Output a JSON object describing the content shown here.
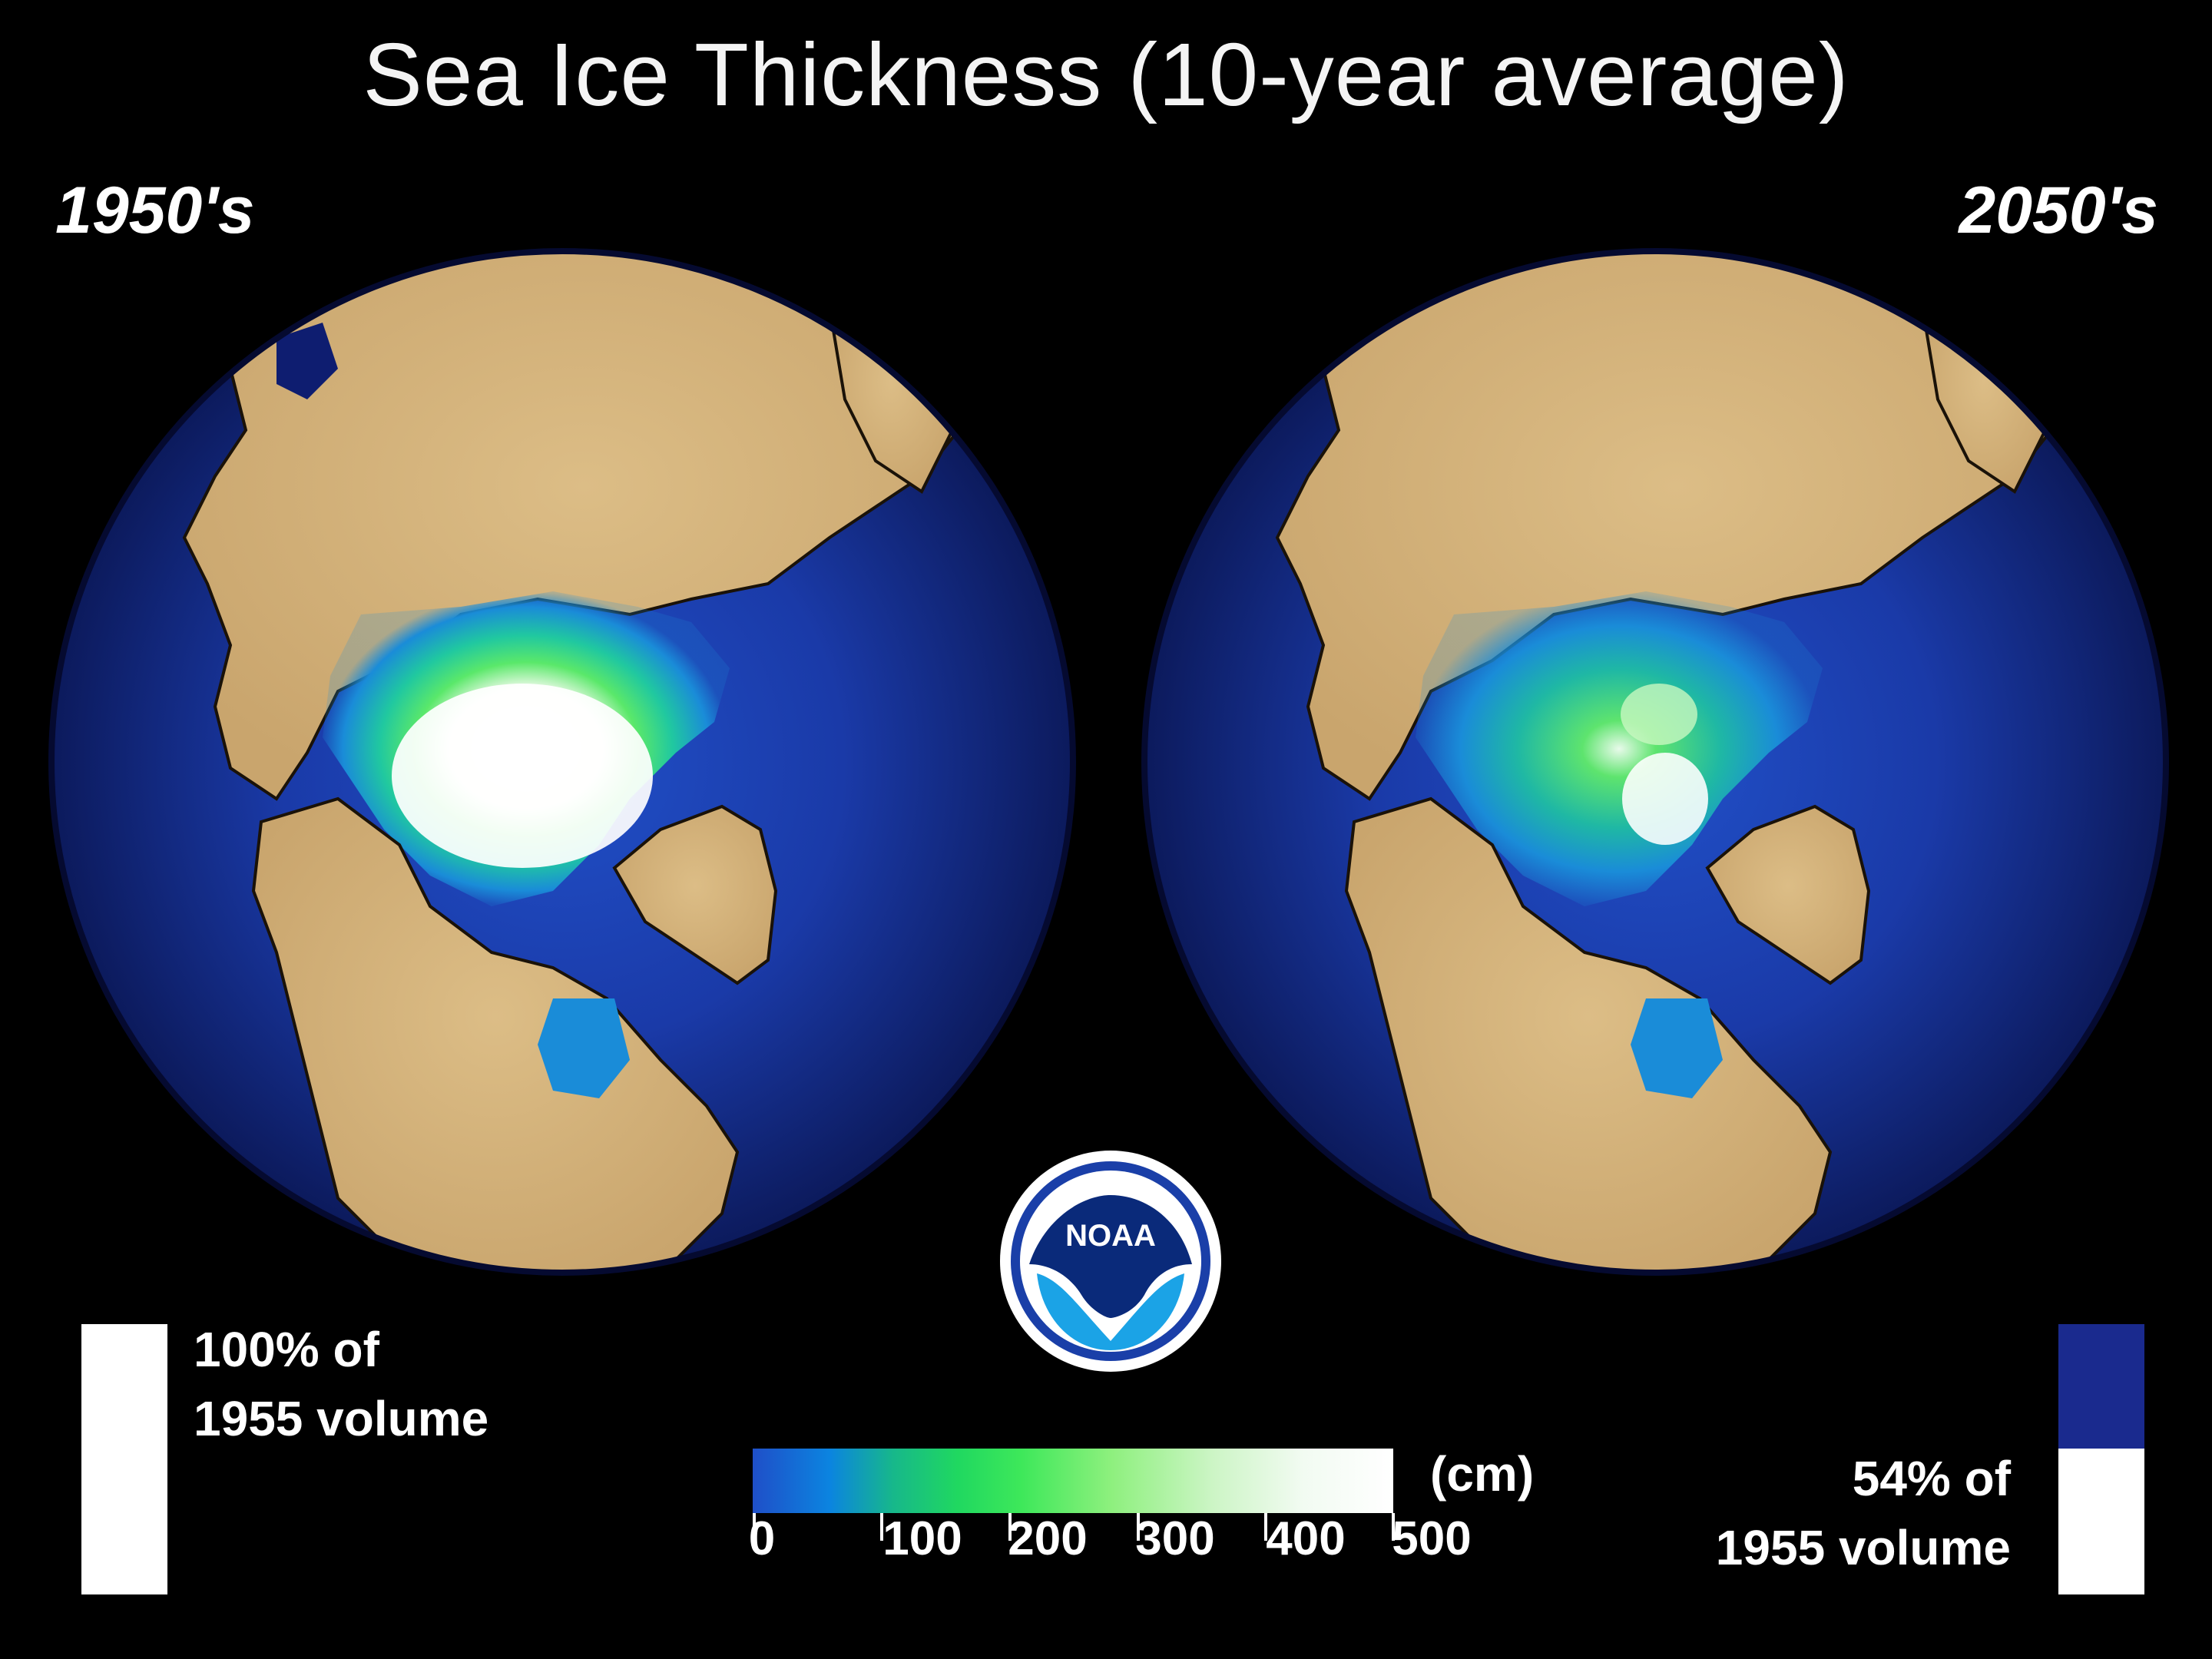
{
  "title": "Sea Ice Thickness (10-year average)",
  "panels": [
    {
      "label": "1950's",
      "volume_text": "100% of\n1955 volume",
      "volume_fraction": 1.0
    },
    {
      "label": "2050's",
      "volume_text": "54% of\n1955 volume",
      "volume_fraction": 0.54
    }
  ],
  "colorbar": {
    "unit": "(cm)",
    "ticks": [
      "0",
      "100",
      "200",
      "300",
      "400",
      "500"
    ],
    "range": [
      0,
      500
    ]
  },
  "logo_text": "NOAA",
  "colors": {
    "background": "#000000",
    "land": "#d8b47c",
    "ocean": "#1a2a8e",
    "thin_ice": "#1a8cd8",
    "medium_ice": "#33e060",
    "thick_ice": "#ffffff"
  }
}
